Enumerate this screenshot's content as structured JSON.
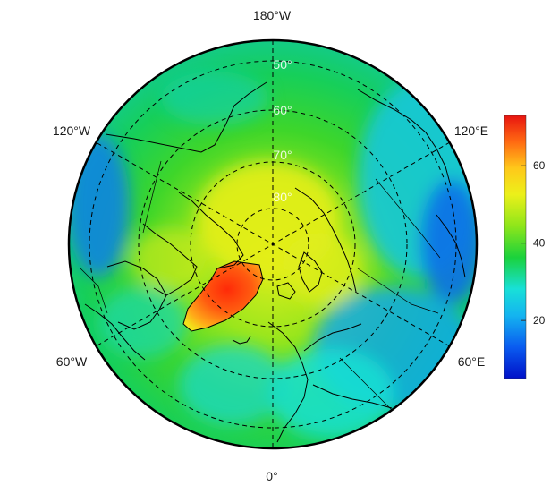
{
  "map": {
    "projection": "north-polar-stereographic",
    "longitude_labels": [
      {
        "lon": 180,
        "text": "180°W"
      },
      {
        "lon": 120,
        "text": "120°E"
      },
      {
        "lon": 60,
        "text": "60°E"
      },
      {
        "lon": 0,
        "text": "0°"
      },
      {
        "lon": -60,
        "text": "60°W"
      },
      {
        "lon": -120,
        "text": "120°W"
      }
    ],
    "latitude_labels": [
      {
        "lat": 50,
        "text": "50°"
      },
      {
        "lat": 60,
        "text": "60°"
      },
      {
        "lat": 70,
        "text": "70°"
      },
      {
        "lat": 80,
        "text": "80°"
      }
    ],
    "colors": {
      "background_field": "#22d02a",
      "greenland_core": "#ff3a10",
      "coastline": "#000000",
      "graticule": "#000000",
      "boundary": "#000000"
    }
  },
  "colorbar": {
    "range": [
      5,
      73
    ],
    "ticks": [
      {
        "value": 20,
        "text": "20"
      },
      {
        "value": 40,
        "text": "40"
      },
      {
        "value": 60,
        "text": "60"
      }
    ],
    "colormap": [
      "#0010c8",
      "#0a5cf0",
      "#14b4f0",
      "#18e0d8",
      "#1ad23c",
      "#8ee61a",
      "#ecf01a",
      "#ffc81a",
      "#ff6a12",
      "#e81410"
    ]
  }
}
